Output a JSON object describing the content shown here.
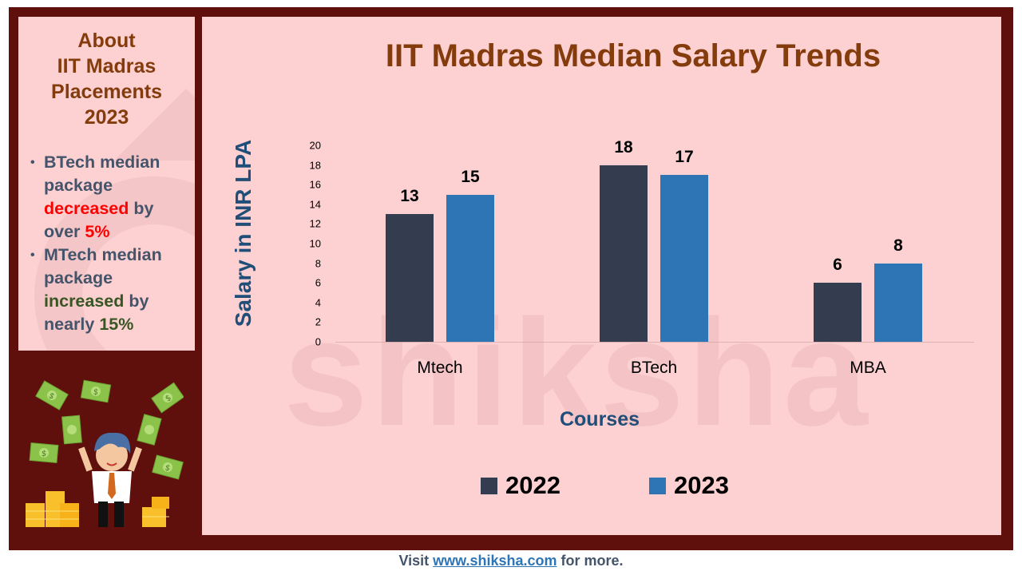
{
  "sidebar": {
    "title_lines": [
      "About",
      "IIT Madras",
      "Placements",
      "2023"
    ],
    "bullets": [
      {
        "parts": [
          "BTech median package ",
          "decreased",
          " by over ",
          "5%"
        ]
      },
      {
        "parts": [
          "MTech median package ",
          "increased",
          " by nearly ",
          "15%"
        ]
      }
    ]
  },
  "illustration": {
    "name": "man-throwing-money",
    "description": "Cartoon man holding cash with flying dollar bills and gold coin stacks"
  },
  "watermark": "shiksha",
  "footer": {
    "prefix": "Visit ",
    "link": "www.shiksha.com",
    "suffix": " for more."
  },
  "colors": {
    "frame": "#5f0f0c",
    "panel": "#fdd0d2",
    "title": "#843c0c",
    "series_2022": "#333d4f",
    "series_2023": "#2e75b6",
    "axis_label": "#1f4e79",
    "text": "#44546a",
    "decrease": "#ff0000",
    "increase": "#375623"
  },
  "chart_data": {
    "type": "bar",
    "title": "IIT Madras Median Salary Trends",
    "xlabel": "Courses",
    "ylabel": "Salary in INR LPA",
    "categories": [
      "Mtech",
      "BTech",
      "MBA"
    ],
    "series": [
      {
        "name": "2022",
        "values": [
          13,
          18,
          6
        ]
      },
      {
        "name": "2023",
        "values": [
          15,
          17,
          8
        ]
      }
    ],
    "ylim": [
      0,
      20
    ],
    "yticks": [
      0,
      2,
      4,
      6,
      8,
      10,
      12,
      14,
      16,
      18,
      20
    ],
    "grid": false,
    "legend_position": "bottom"
  }
}
